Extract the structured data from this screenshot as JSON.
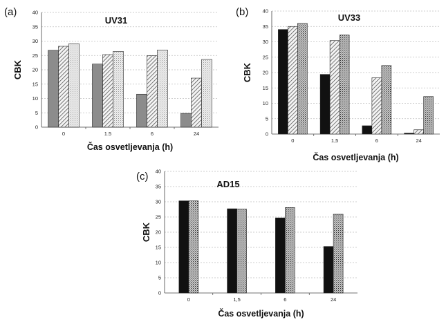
{
  "chart_data": [
    {
      "panel": "(a)",
      "type": "bar",
      "title": "UV31",
      "xlabel": "Čas osvetljevanja (h)",
      "ylabel": "CBK",
      "categories": [
        "0",
        "1.5",
        "6",
        "24"
      ],
      "yticks": [
        "0",
        "5",
        "10",
        "15",
        "20",
        "25",
        "30",
        "35",
        "40"
      ],
      "ylim": [
        0,
        40
      ],
      "grid": true,
      "series": [
        {
          "values": [
            26.8,
            22,
            11.5,
            4.8
          ],
          "pattern": "solid-gray"
        },
        {
          "values": [
            28.2,
            25.3,
            24.9,
            17.1
          ],
          "pattern": "hatch"
        },
        {
          "values": [
            29.1,
            26.4,
            26.9,
            23.6
          ],
          "pattern": "light-dots"
        }
      ]
    },
    {
      "panel": "(b)",
      "type": "bar",
      "title": "UV33",
      "xlabel": "Čas osvetljevanja (h)",
      "ylabel": "CBK",
      "categories": [
        "0",
        "1,5",
        "6",
        "24"
      ],
      "yticks": [
        "0",
        "5",
        "10",
        "15",
        "20",
        "25",
        "30",
        "35",
        "40"
      ],
      "ylim": [
        0,
        40
      ],
      "grid": true,
      "series": [
        {
          "values": [
            34,
            19.4,
            2.7,
            0.3
          ],
          "pattern": "solid-black"
        },
        {
          "values": [
            35,
            30.4,
            18.3,
            1.4
          ],
          "pattern": "hatch"
        },
        {
          "values": [
            36,
            32.2,
            22.3,
            12.2
          ],
          "pattern": "dots"
        }
      ]
    },
    {
      "panel": "(c)",
      "type": "bar",
      "title": "AD15",
      "xlabel": "Čas osvetljevanja (h)",
      "ylabel": "CBK",
      "categories": [
        "0",
        "1,5",
        "6",
        "24"
      ],
      "yticks": [
        "0",
        "5",
        "10",
        "15",
        "20",
        "25",
        "30",
        "35",
        "40"
      ],
      "ylim": [
        0,
        40
      ],
      "grid": true,
      "series": [
        {
          "values": [
            30.3,
            27.7,
            24.7,
            15.3
          ],
          "pattern": "solid-black"
        },
        {
          "values": [
            30.3,
            27.6,
            28.1,
            25.9
          ],
          "pattern": "dots"
        }
      ]
    }
  ],
  "colors": {
    "solid-gray": "#8c8c8c",
    "solid-black": "#111111",
    "hatch-bg": "#f4f4f4",
    "hatch-line": "#555555",
    "dots-bg": "#cfcfcf",
    "light-dots-bg": "#eeeeee",
    "grid": "#bfbfbf",
    "axis": "#444444"
  }
}
